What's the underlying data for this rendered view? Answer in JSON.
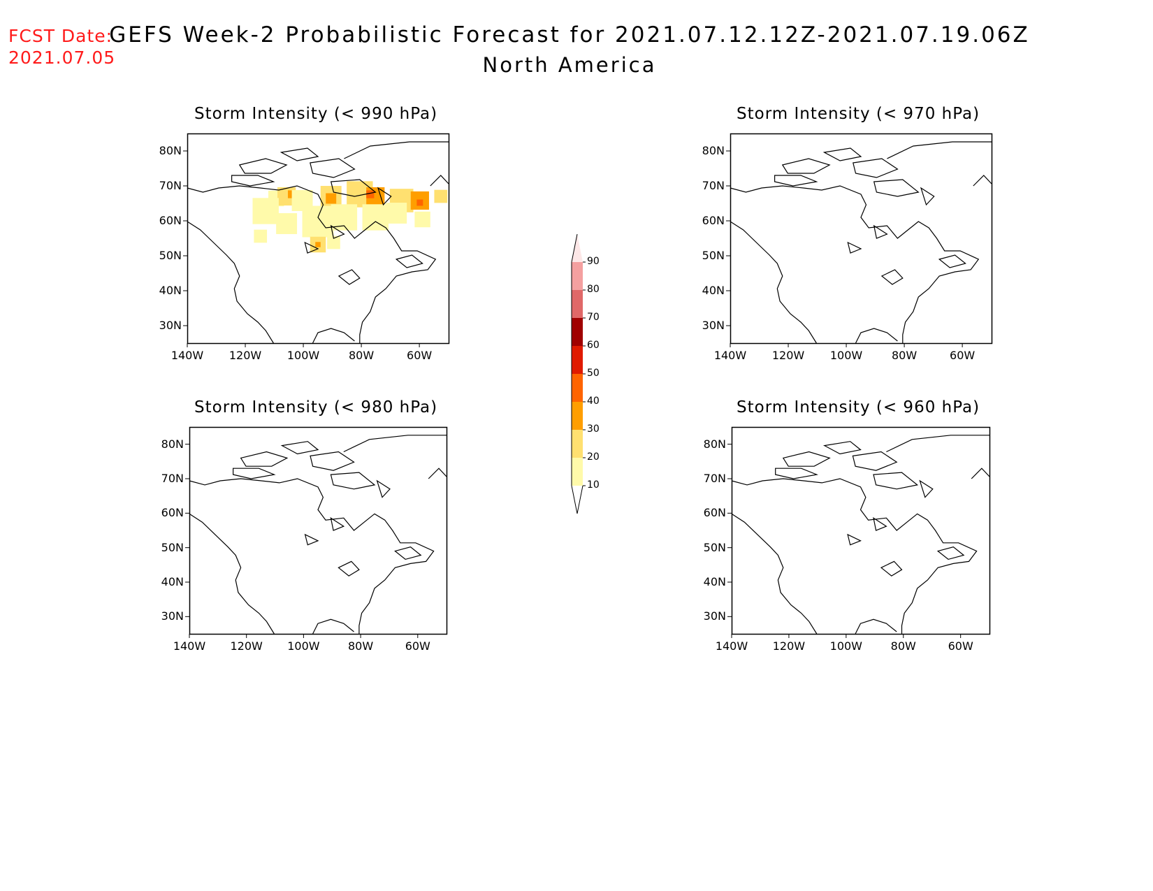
{
  "header": {
    "fcst_label": "FCST Date:",
    "fcst_date": "2021.07.05",
    "title": "GEFS Week-2 Probabilistic Forecast for 2021.07.12.12Z-2021.07.19.06Z",
    "subtitle": "North America"
  },
  "axes": {
    "lat_labels": [
      "80N",
      "70N",
      "60N",
      "50N",
      "40N",
      "30N"
    ],
    "lon_labels": [
      "140W",
      "120W",
      "100W",
      "80W",
      "60W"
    ]
  },
  "panels": [
    {
      "title": "Storm Intensity (< 990 hPa)"
    },
    {
      "title": "Storm Intensity (< 970 hPa)"
    },
    {
      "title": "Storm Intensity (< 980 hPa)"
    },
    {
      "title": "Storm Intensity (< 960 hPa)"
    }
  ],
  "colorbar": {
    "labels": [
      "90",
      "80",
      "70",
      "60",
      "50",
      "40",
      "30",
      "20",
      "10"
    ],
    "colors": [
      "#fde7e7",
      "#f4a0a0",
      "#e06868",
      "#a00000",
      "#e01a00",
      "#ff6400",
      "#ff9e00",
      "#ffe070",
      "#fffaaa"
    ]
  }
}
